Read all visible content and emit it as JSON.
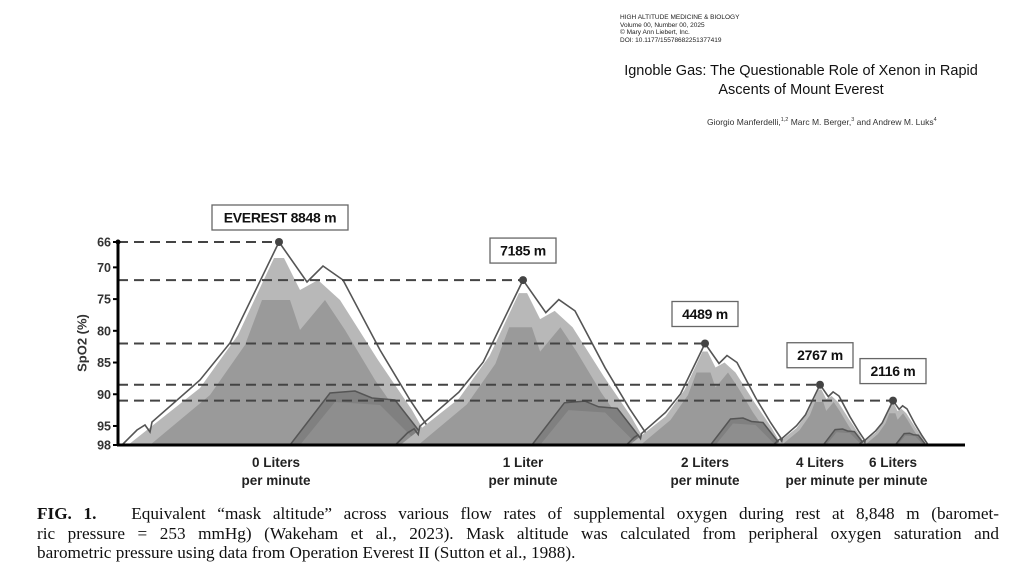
{
  "journal": {
    "name": "HIGH ALTITUDE MEDICINE & BIOLOGY",
    "volume": "Volume 00, Number 00, 2025",
    "copyright": "© Mary Ann Liebert, Inc.",
    "doi": "DOI: 10.1177/15578682251377419"
  },
  "article": {
    "title": "Ignoble Gas: The Questionable Role of Xenon in Rapid Ascents of Mount Everest",
    "authors": [
      {
        "name": "Giorgio Manferdelli,",
        "aff": "1,2"
      },
      {
        "name": " Marc M. Berger,",
        "aff": "3"
      },
      {
        "name": " and Andrew M. Luks",
        "aff": "4"
      }
    ]
  },
  "chart_data": {
    "type": "line",
    "ylabel": "SpO2 (%)",
    "yticks": [
      "66",
      "70",
      "75",
      "80",
      "85",
      "90",
      "95",
      "98"
    ],
    "ylim": [
      66,
      98
    ],
    "y_inverted": true,
    "categories": [
      [
        "0 Liters",
        "per minute"
      ],
      [
        "1 Liter",
        "per minute"
      ],
      [
        "2 Liters",
        "per minute"
      ],
      [
        "4 Liters",
        "per minute"
      ],
      [
        "6 Liters",
        "per minute"
      ]
    ],
    "spo2": [
      66,
      72,
      82,
      88.5,
      91
    ],
    "altitude_labels": [
      "EVEREST 8848 m",
      "7185 m",
      "4489 m",
      "2767 m",
      "2116 m"
    ],
    "colors": {
      "outline": "#555555",
      "mountain_light": "#b8b8b8",
      "mountain_mid": "#9a9a9a",
      "mountain_dark": "#808080",
      "dash": "#444444"
    }
  },
  "caption": {
    "label": "FIG. 1.",
    "lines": [
      "Equivalent “mask altitude” across various flow rates of supplemental oxygen during rest at 8,848 m (baromet-",
      "ric pressure = 253 mmHg) (Wakeham et al., 2023). Mask altitude was calculated from peripheral oxygen saturation and",
      "barometric pressure using data from Operation Everest II (Sutton et al., 1988)."
    ]
  }
}
